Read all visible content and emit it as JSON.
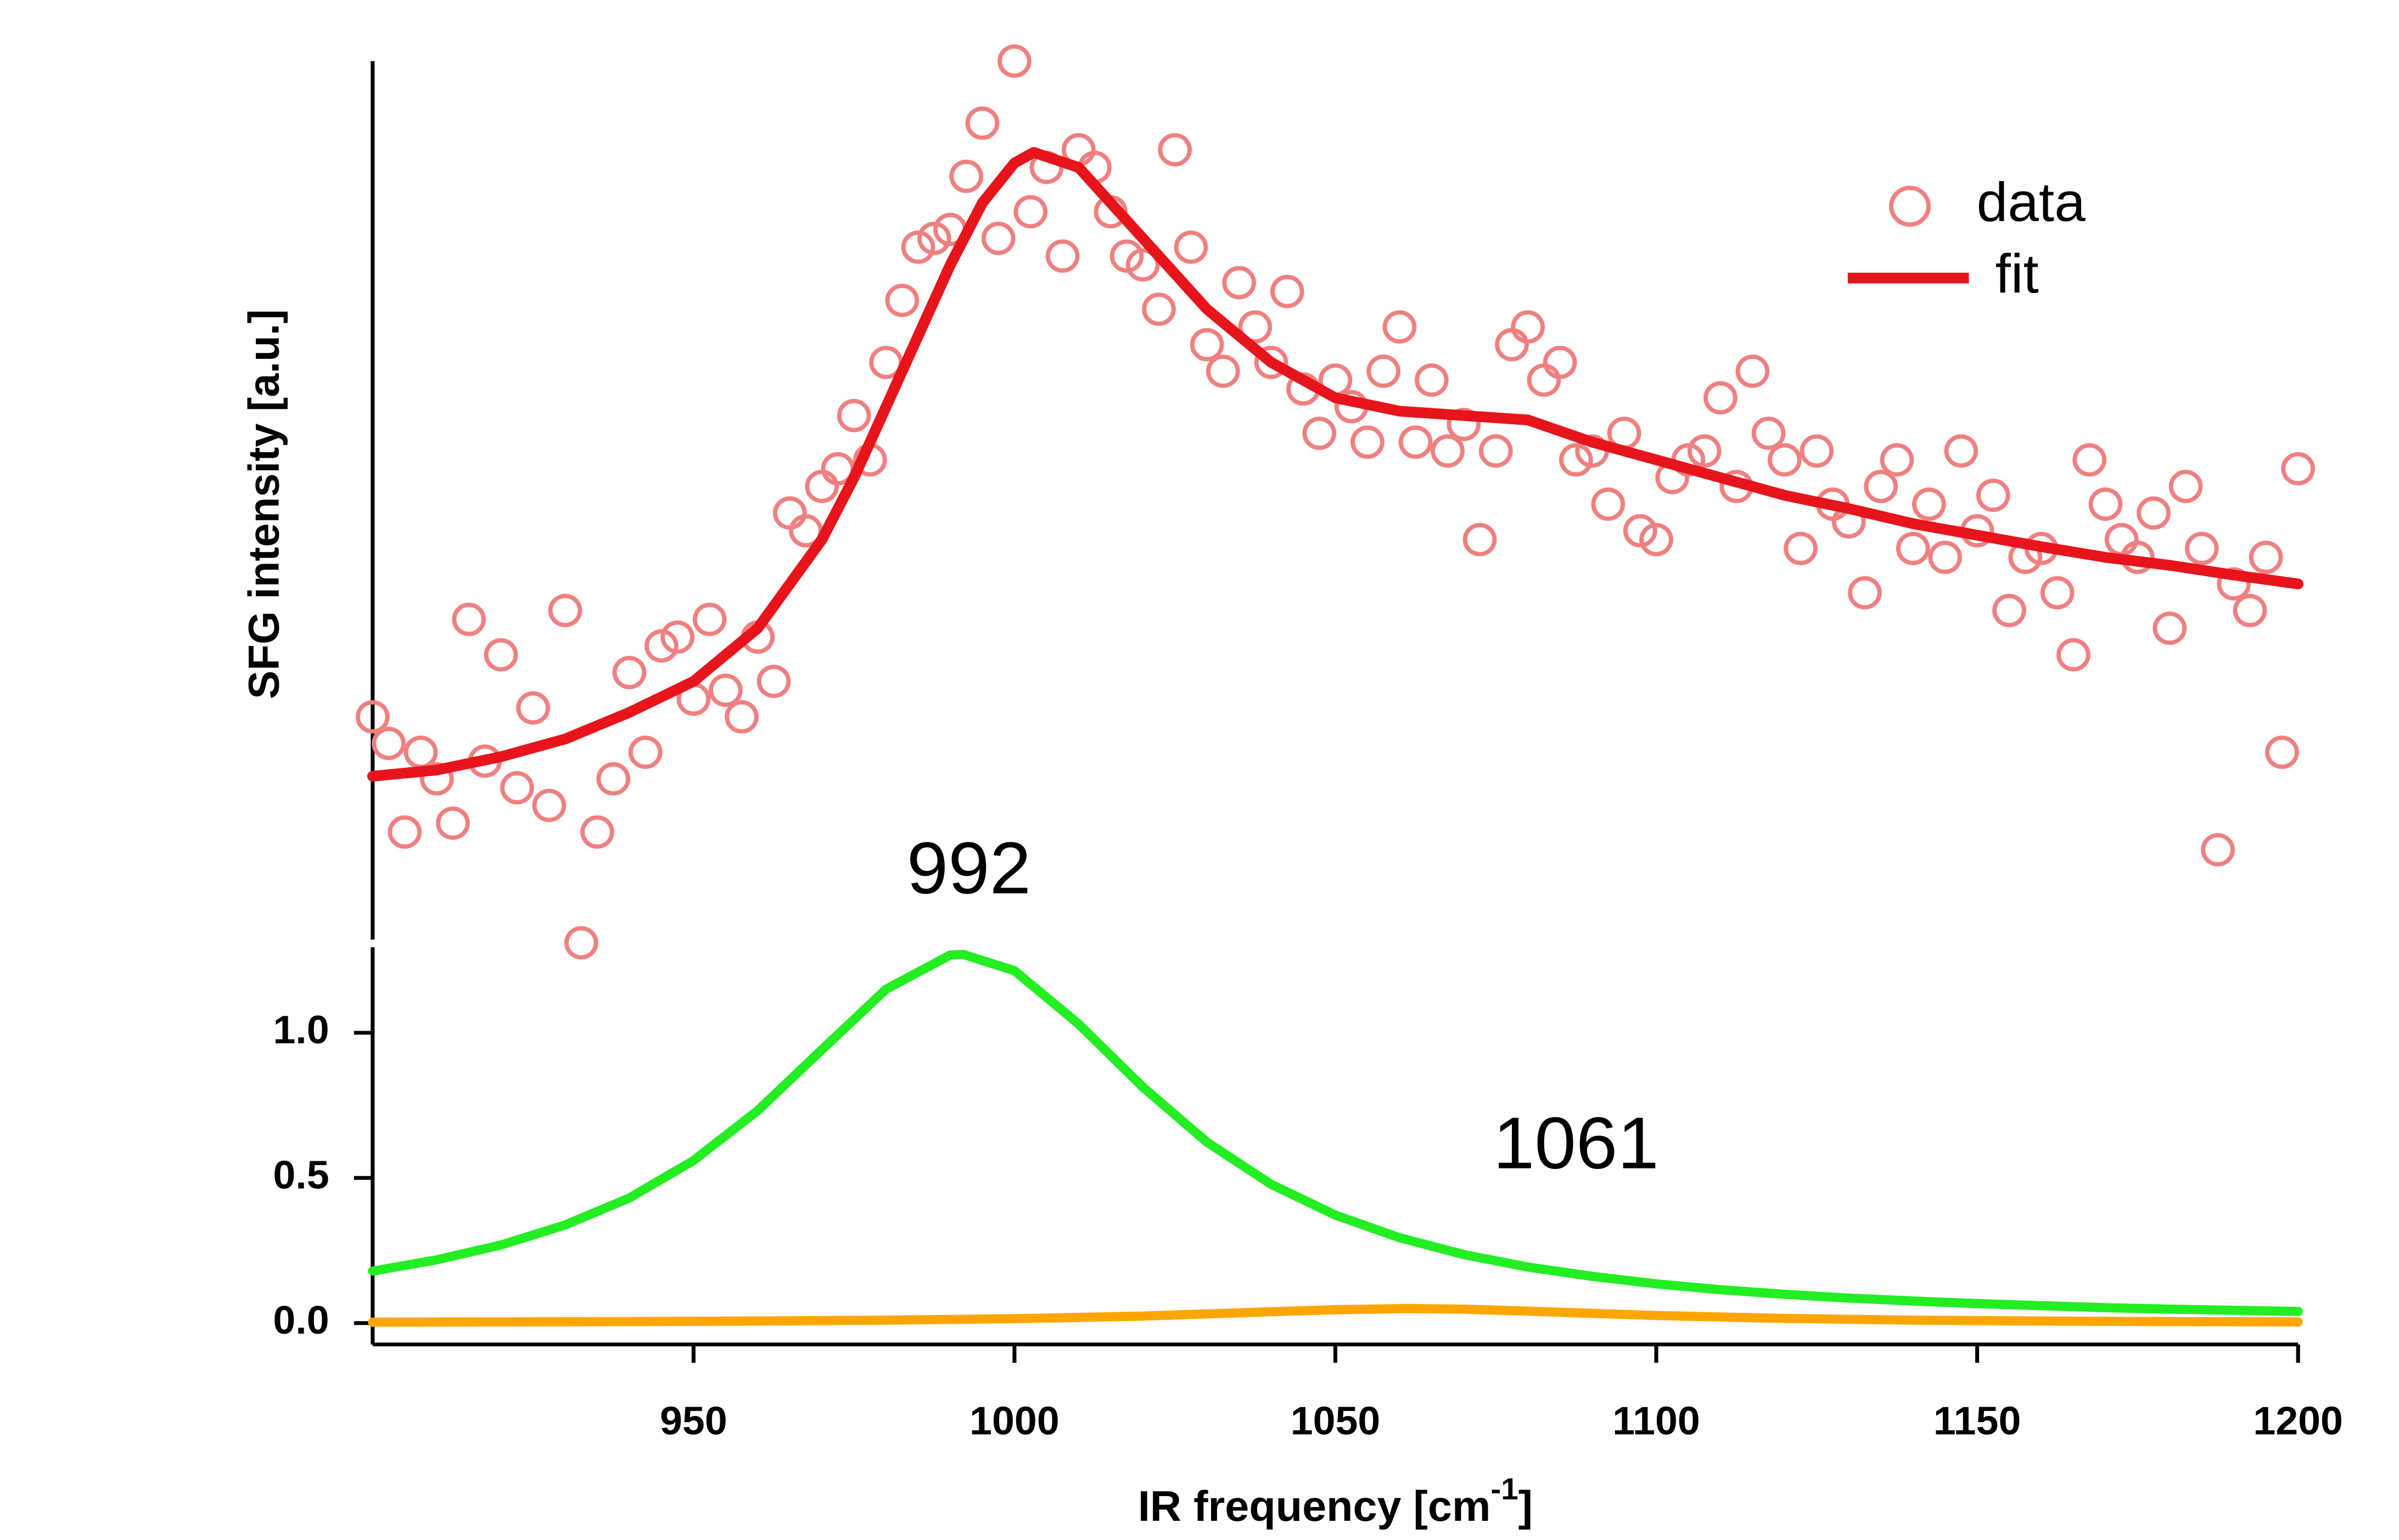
{
  "chart_data": [
    {
      "type": "scatter",
      "y_label": "SFG intensity [a.u.]",
      "xlim": [
        900,
        1200
      ],
      "ylim": [
        0,
        1
      ],
      "series": [
        {
          "name": "data",
          "color": "#f08080",
          "style": "circle",
          "x": [
            900,
            902.5,
            905,
            907.5,
            910,
            912.5,
            915,
            917.5,
            920,
            922.5,
            925,
            927.5,
            930,
            932.5,
            935,
            937.5,
            940,
            942.5,
            945,
            947.5,
            950,
            952.5,
            955,
            957.5,
            960,
            962.5,
            965,
            967.5,
            970,
            972.5,
            975,
            977.5,
            980,
            982.5,
            985,
            987.5,
            990,
            992.5,
            995,
            997.5,
            1000,
            1002.5,
            1005,
            1007.5,
            1010,
            1012.5,
            1015,
            1017.5,
            1020,
            1022.5,
            1025,
            1027.5,
            1030,
            1032.5,
            1035,
            1037.5,
            1040,
            1042.5,
            1045,
            1047.5,
            1050,
            1052.5,
            1055,
            1057.5,
            1060,
            1062.5,
            1065,
            1067.5,
            1070,
            1072.5,
            1075,
            1077.5,
            1080,
            1082.5,
            1085,
            1087.5,
            1090,
            1092.5,
            1095,
            1097.5,
            1100,
            1102.5,
            1105,
            1107.5,
            1110,
            1112.5,
            1115,
            1117.5,
            1120,
            1122.5,
            1125,
            1127.5,
            1130,
            1132.5,
            1135,
            1137.5,
            1140,
            1142.5,
            1145,
            1147.5,
            1150,
            1152.5,
            1155,
            1157.5,
            1160,
            1162.5,
            1165,
            1167.5,
            1170,
            1172.5,
            1175,
            1177.5,
            1180,
            1182.5,
            1185,
            1187.5,
            1190,
            1192.5,
            1195,
            1197.5,
            1200
          ],
          "values": [
            0.26,
            0.23,
            0.13,
            0.22,
            0.19,
            0.14,
            0.37,
            0.21,
            0.33,
            0.18,
            0.27,
            0.16,
            0.38,
            0.005,
            0.13,
            0.19,
            0.31,
            0.22,
            0.34,
            0.35,
            0.28,
            0.37,
            0.29,
            0.26,
            0.35,
            0.3,
            0.49,
            0.47,
            0.52,
            0.54,
            0.6,
            0.55,
            0.66,
            0.73,
            0.79,
            0.8,
            0.81,
            0.87,
            0.93,
            0.8,
            1.0,
            0.83,
            0.88,
            0.78,
            0.9,
            0.88,
            0.83,
            0.78,
            0.77,
            0.72,
            0.9,
            0.79,
            0.68,
            0.65,
            0.75,
            0.7,
            0.66,
            0.74,
            0.63,
            0.58,
            0.64,
            0.61,
            0.57,
            0.65,
            0.7,
            0.57,
            0.64,
            0.56,
            0.59,
            0.46,
            0.56,
            0.68,
            0.7,
            0.64,
            0.66,
            0.55,
            0.56,
            0.5,
            0.58,
            0.47,
            0.46,
            0.53,
            0.55,
            0.56,
            0.62,
            0.52,
            0.65,
            0.58,
            0.55,
            0.45,
            0.56,
            0.5,
            0.48,
            0.4,
            0.52,
            0.55,
            0.45,
            0.5,
            0.44,
            0.56,
            0.47,
            0.51,
            0.38,
            0.44,
            0.45,
            0.4,
            0.33,
            0.55,
            0.5,
            0.46,
            0.44,
            0.49,
            0.36,
            0.52,
            0.45,
            0.11,
            0.41,
            0.38,
            0.44,
            0.22,
            0.54
          ]
        },
        {
          "name": "fit",
          "color": "#e8141b",
          "style": "line",
          "x": [
            900,
            910,
            920,
            930,
            940,
            950,
            960,
            970,
            975,
            980,
            985,
            990,
            995,
            1000,
            1003,
            1010,
            1020,
            1030,
            1040,
            1050,
            1060,
            1070,
            1080,
            1090,
            1100,
            1110,
            1120,
            1130,
            1140,
            1150,
            1160,
            1170,
            1180,
            1190,
            1200
          ],
          "values": [
            0.193,
            0.2,
            0.215,
            0.235,
            0.265,
            0.3,
            0.36,
            0.46,
            0.53,
            0.61,
            0.69,
            0.77,
            0.84,
            0.885,
            0.897,
            0.88,
            0.8,
            0.72,
            0.66,
            0.62,
            0.605,
            0.6,
            0.595,
            0.57,
            0.55,
            0.53,
            0.51,
            0.495,
            0.478,
            0.465,
            0.452,
            0.44,
            0.431,
            0.42,
            0.41
          ]
        }
      ]
    },
    {
      "type": "line",
      "x_label": {
        "text": "IR frequency [cm",
        "superscript": "-1",
        "suffix": "]"
      },
      "xlim": [
        900,
        1200
      ],
      "xticks": [
        950,
        1000,
        1050,
        1100,
        1150,
        1200
      ],
      "ylim": [
        0,
        1.3
      ],
      "yticks": [
        {
          "value": 0,
          "label": "0.0"
        },
        0.5,
        {
          "value": 1,
          "label": "1.0"
        }
      ],
      "annotations": [
        "992",
        "1061"
      ],
      "series": [
        {
          "color": "#22ee22",
          "x": [
            900,
            910,
            920,
            930,
            940,
            950,
            960,
            970,
            980,
            990,
            992,
            1000,
            1010,
            1020,
            1030,
            1040,
            1050,
            1060,
            1070,
            1080,
            1090,
            1100,
            1110,
            1120,
            1130,
            1140,
            1150,
            1160,
            1170,
            1180,
            1190,
            1200
          ],
          "values": [
            0.179,
            0.218,
            0.269,
            0.338,
            0.431,
            0.56,
            0.732,
            0.942,
            1.15,
            1.268,
            1.27,
            1.214,
            1.03,
            0.813,
            0.623,
            0.478,
            0.372,
            0.294,
            0.236,
            0.193,
            0.161,
            0.135,
            0.115,
            0.099,
            0.086,
            0.076,
            0.067,
            0.06,
            0.053,
            0.048,
            0.044,
            0.04
          ]
        },
        {
          "color": "#ffa500",
          "x": [
            900,
            920,
            940,
            960,
            980,
            1000,
            1020,
            1040,
            1050,
            1061,
            1070,
            1080,
            1100,
            1120,
            1140,
            1160,
            1180,
            1200
          ],
          "values": [
            0.003,
            0.004,
            0.005,
            0.007,
            0.01,
            0.015,
            0.024,
            0.039,
            0.046,
            0.05,
            0.048,
            0.041,
            0.026,
            0.016,
            0.01,
            0.007,
            0.005,
            0.004
          ]
        }
      ]
    }
  ]
}
